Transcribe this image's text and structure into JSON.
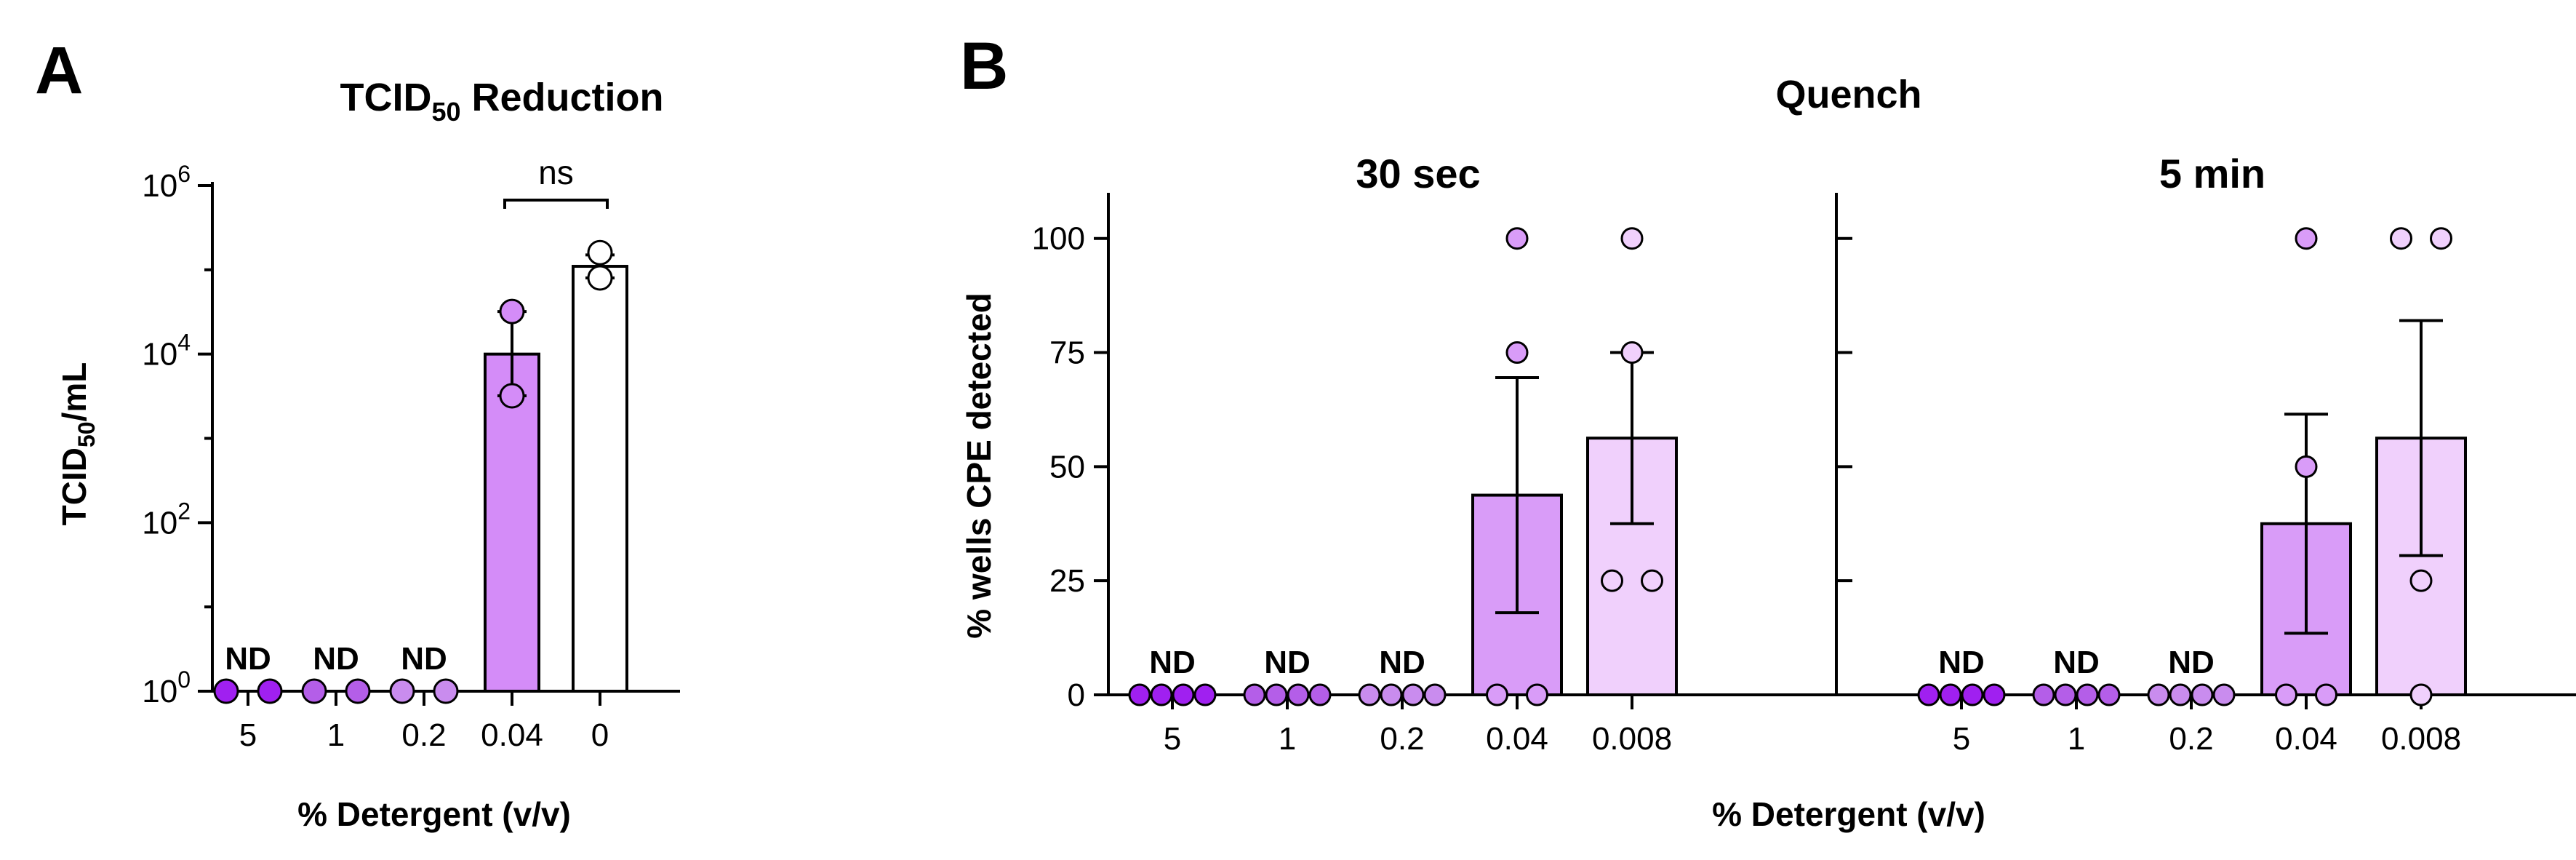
{
  "figure": {
    "panel_a_letter": "A",
    "panel_b_letter": "B"
  },
  "chart_data": [
    {
      "id": "A",
      "type": "bar",
      "scale": "log",
      "title": "TCID",
      "title_subscript": "50",
      "title_suffix": " Reduction",
      "ylabel": "TCID",
      "ylabel_subscript": "50",
      "ylabel_suffix": "/mL",
      "xlabel": "% Detergent (v/v)",
      "ylim": [
        1,
        1000000
      ],
      "yticks": [
        {
          "value": 1,
          "base": "10",
          "exp": "0"
        },
        {
          "value": 100,
          "base": "10",
          "exp": "2"
        },
        {
          "value": 10000,
          "base": "10",
          "exp": "4"
        },
        {
          "value": 1000000,
          "base": "10",
          "exp": "6"
        }
      ],
      "categories": [
        "5",
        "1",
        "0.2",
        "0.04",
        "0"
      ],
      "values": [
        null,
        null,
        null,
        10000,
        110000
      ],
      "error_high": [
        null,
        null,
        null,
        32000,
        150000
      ],
      "error_low": [
        null,
        null,
        null,
        3200,
        80000
      ],
      "points": [
        [
          1,
          1
        ],
        [
          1,
          1
        ],
        [
          1,
          1
        ],
        [
          32000,
          3200
        ],
        [
          160000,
          80000
        ]
      ],
      "nd_labels": [
        "ND",
        "ND",
        "ND",
        null,
        null
      ],
      "colors": [
        "#a020f0",
        "#b45ee8",
        "#c98cee",
        "#d48cf8",
        "#ffffff"
      ],
      "significance": {
        "from": 3,
        "to": 4,
        "label": "ns"
      }
    },
    {
      "id": "B",
      "type": "bar",
      "title": "Quench",
      "ylabel": "% wells CPE detected",
      "xlabel": "% Detergent (v/v)",
      "ylim": [
        0,
        110
      ],
      "yticks": [
        "0",
        "25",
        "50",
        "75",
        "100"
      ],
      "yticks_values": [
        0,
        25,
        50,
        75,
        100
      ],
      "categories": [
        "5",
        "1",
        "0.2",
        "0.04",
        "0.008"
      ],
      "colors": [
        "#a020f0",
        "#b45ee8",
        "#c98cee",
        "#d99cf8",
        "#f0d0fc"
      ],
      "subpanels": [
        {
          "title": "30 sec",
          "values": [
            null,
            null,
            null,
            43.75,
            56.25
          ],
          "error_high": [
            null,
            null,
            null,
            69.5,
            75
          ],
          "error_low": [
            null,
            null,
            null,
            18,
            37.5
          ],
          "points": [
            [
              0,
              0,
              0,
              0
            ],
            [
              0,
              0,
              0,
              0
            ],
            [
              0,
              0,
              0,
              0
            ],
            [
              100,
              75,
              0,
              0
            ],
            [
              100,
              75,
              25,
              25
            ]
          ],
          "nd_labels": [
            "ND",
            "ND",
            "ND",
            null,
            null
          ]
        },
        {
          "title": "5 min",
          "values": [
            null,
            null,
            null,
            37.5,
            56.25
          ],
          "error_high": [
            null,
            null,
            null,
            61.5,
            82
          ],
          "error_low": [
            null,
            null,
            null,
            13.5,
            30.5
          ],
          "points": [
            [
              0,
              0,
              0,
              0
            ],
            [
              0,
              0,
              0,
              0
            ],
            [
              0,
              0,
              0,
              0
            ],
            [
              100,
              50,
              0,
              0
            ],
            [
              100,
              100,
              25,
              0
            ]
          ],
          "nd_labels": [
            "ND",
            "ND",
            "ND",
            null,
            null
          ]
        }
      ]
    }
  ]
}
